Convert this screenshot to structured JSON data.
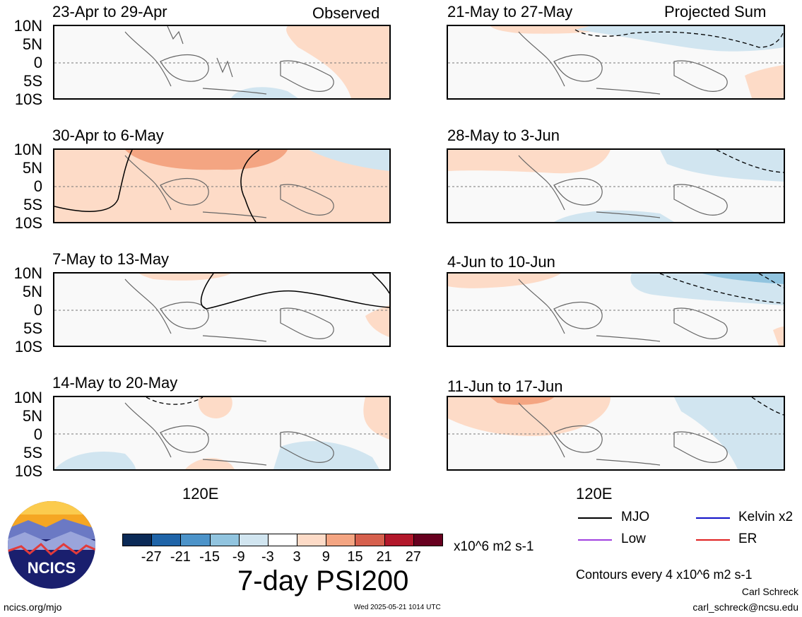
{
  "headers": {
    "observed": "Observed",
    "projected": "Projected Sum"
  },
  "lat_labels": [
    "10N",
    "5N",
    "0",
    "5S",
    "10S"
  ],
  "lon_label": "120E",
  "panels": [
    {
      "date_range": "23-Apr to 29-Apr"
    },
    {
      "date_range": "30-Apr to 6-May"
    },
    {
      "date_range": "7-May to 13-May"
    },
    {
      "date_range": "14-May to 20-May"
    },
    {
      "date_range": "21-May to 27-May"
    },
    {
      "date_range": "28-May to 3-Jun"
    },
    {
      "date_range": "4-Jun to 10-Jun"
    },
    {
      "date_range": "11-Jun to 17-Jun"
    }
  ],
  "colorbar": {
    "colors": [
      "#0b2a57",
      "#1f64a8",
      "#4c93c9",
      "#91c4df",
      "#d1e5f0",
      "#ffffff",
      "#fddbc7",
      "#f4a582",
      "#d6604d",
      "#b2182b",
      "#67001f"
    ],
    "ticks": [
      "-27",
      "-21",
      "-15",
      "-9",
      "-3",
      "3",
      "9",
      "15",
      "21",
      "27"
    ],
    "units": "x10^6 m2 s-1"
  },
  "title": "7-day PSI200",
  "legend": [
    {
      "label": "MJO",
      "color": "#000000"
    },
    {
      "label": "Kelvin x2",
      "color": "#1010c8"
    },
    {
      "label": "Low",
      "color": "#a040e0"
    },
    {
      "label": "ER",
      "color": "#e02020"
    }
  ],
  "contour_note": "Contours every 4 x10^6 m2 s-1",
  "logo": {
    "text": "NCICS"
  },
  "footer": {
    "url": "ncics.org/mjo",
    "timestamp": "Wed 2025-05-21 1014 UTC",
    "author": "Carl Schreck",
    "email": "carl_schreck@ncsu.edu"
  }
}
